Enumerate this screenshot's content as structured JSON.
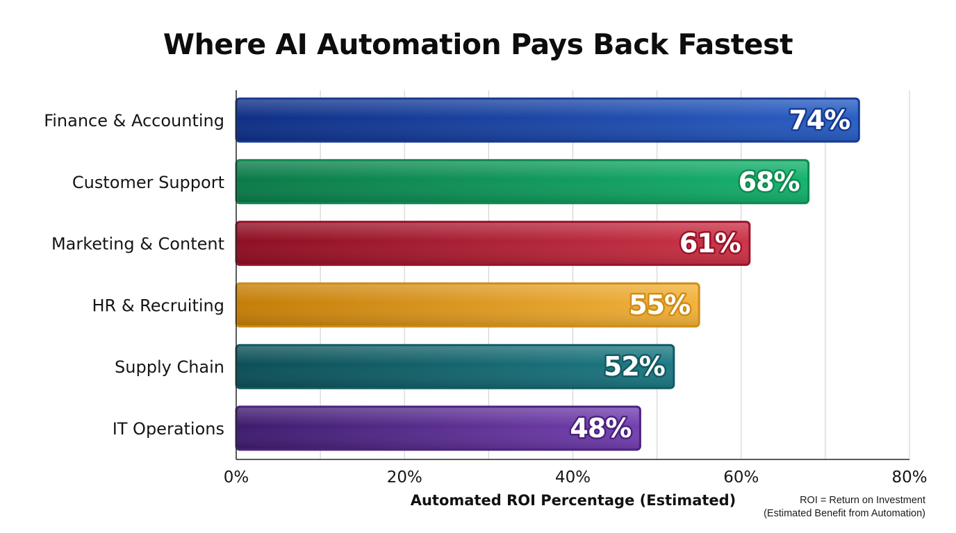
{
  "chart_data": {
    "type": "bar",
    "orientation": "horizontal",
    "title": "Where AI Automation Pays Back Fastest",
    "xlabel": "Automated ROI Percentage (Estimated)",
    "ylabel": "",
    "xlim": [
      0,
      80
    ],
    "x_ticks": [
      0,
      20,
      40,
      60,
      80
    ],
    "x_tick_labels": [
      "0%",
      "20%",
      "40%",
      "60%",
      "80%"
    ],
    "grid": "vertical",
    "categories": [
      "Finance & Accounting",
      "Customer Support",
      "Marketing & Content",
      "HR & Recruiting",
      "Supply Chain",
      "IT Operations"
    ],
    "values": [
      74,
      68,
      61,
      55,
      52,
      48
    ],
    "data_labels": [
      "74%",
      "68%",
      "61%",
      "55%",
      "52%",
      "48%"
    ],
    "colors": [
      {
        "dark": "#0f2f86",
        "light": "#2a5fc4",
        "border": "#163a94"
      },
      {
        "dark": "#0b7a48",
        "light": "#16b26e",
        "border": "#0d8a4f"
      },
      {
        "dark": "#8e0e22",
        "light": "#cc3448",
        "border": "#9a1328"
      },
      {
        "dark": "#c47d06",
        "light": "#f2b23c",
        "border": "#cf8d14"
      },
      {
        "dark": "#0c4f57",
        "light": "#1f7a84",
        "border": "#115a63"
      },
      {
        "dark": "#3f1b6e",
        "light": "#7441b0",
        "border": "#4b2280"
      }
    ],
    "footnote": [
      "ROI = Return on Investment",
      "(Estimated Benefit from Automation)"
    ]
  }
}
